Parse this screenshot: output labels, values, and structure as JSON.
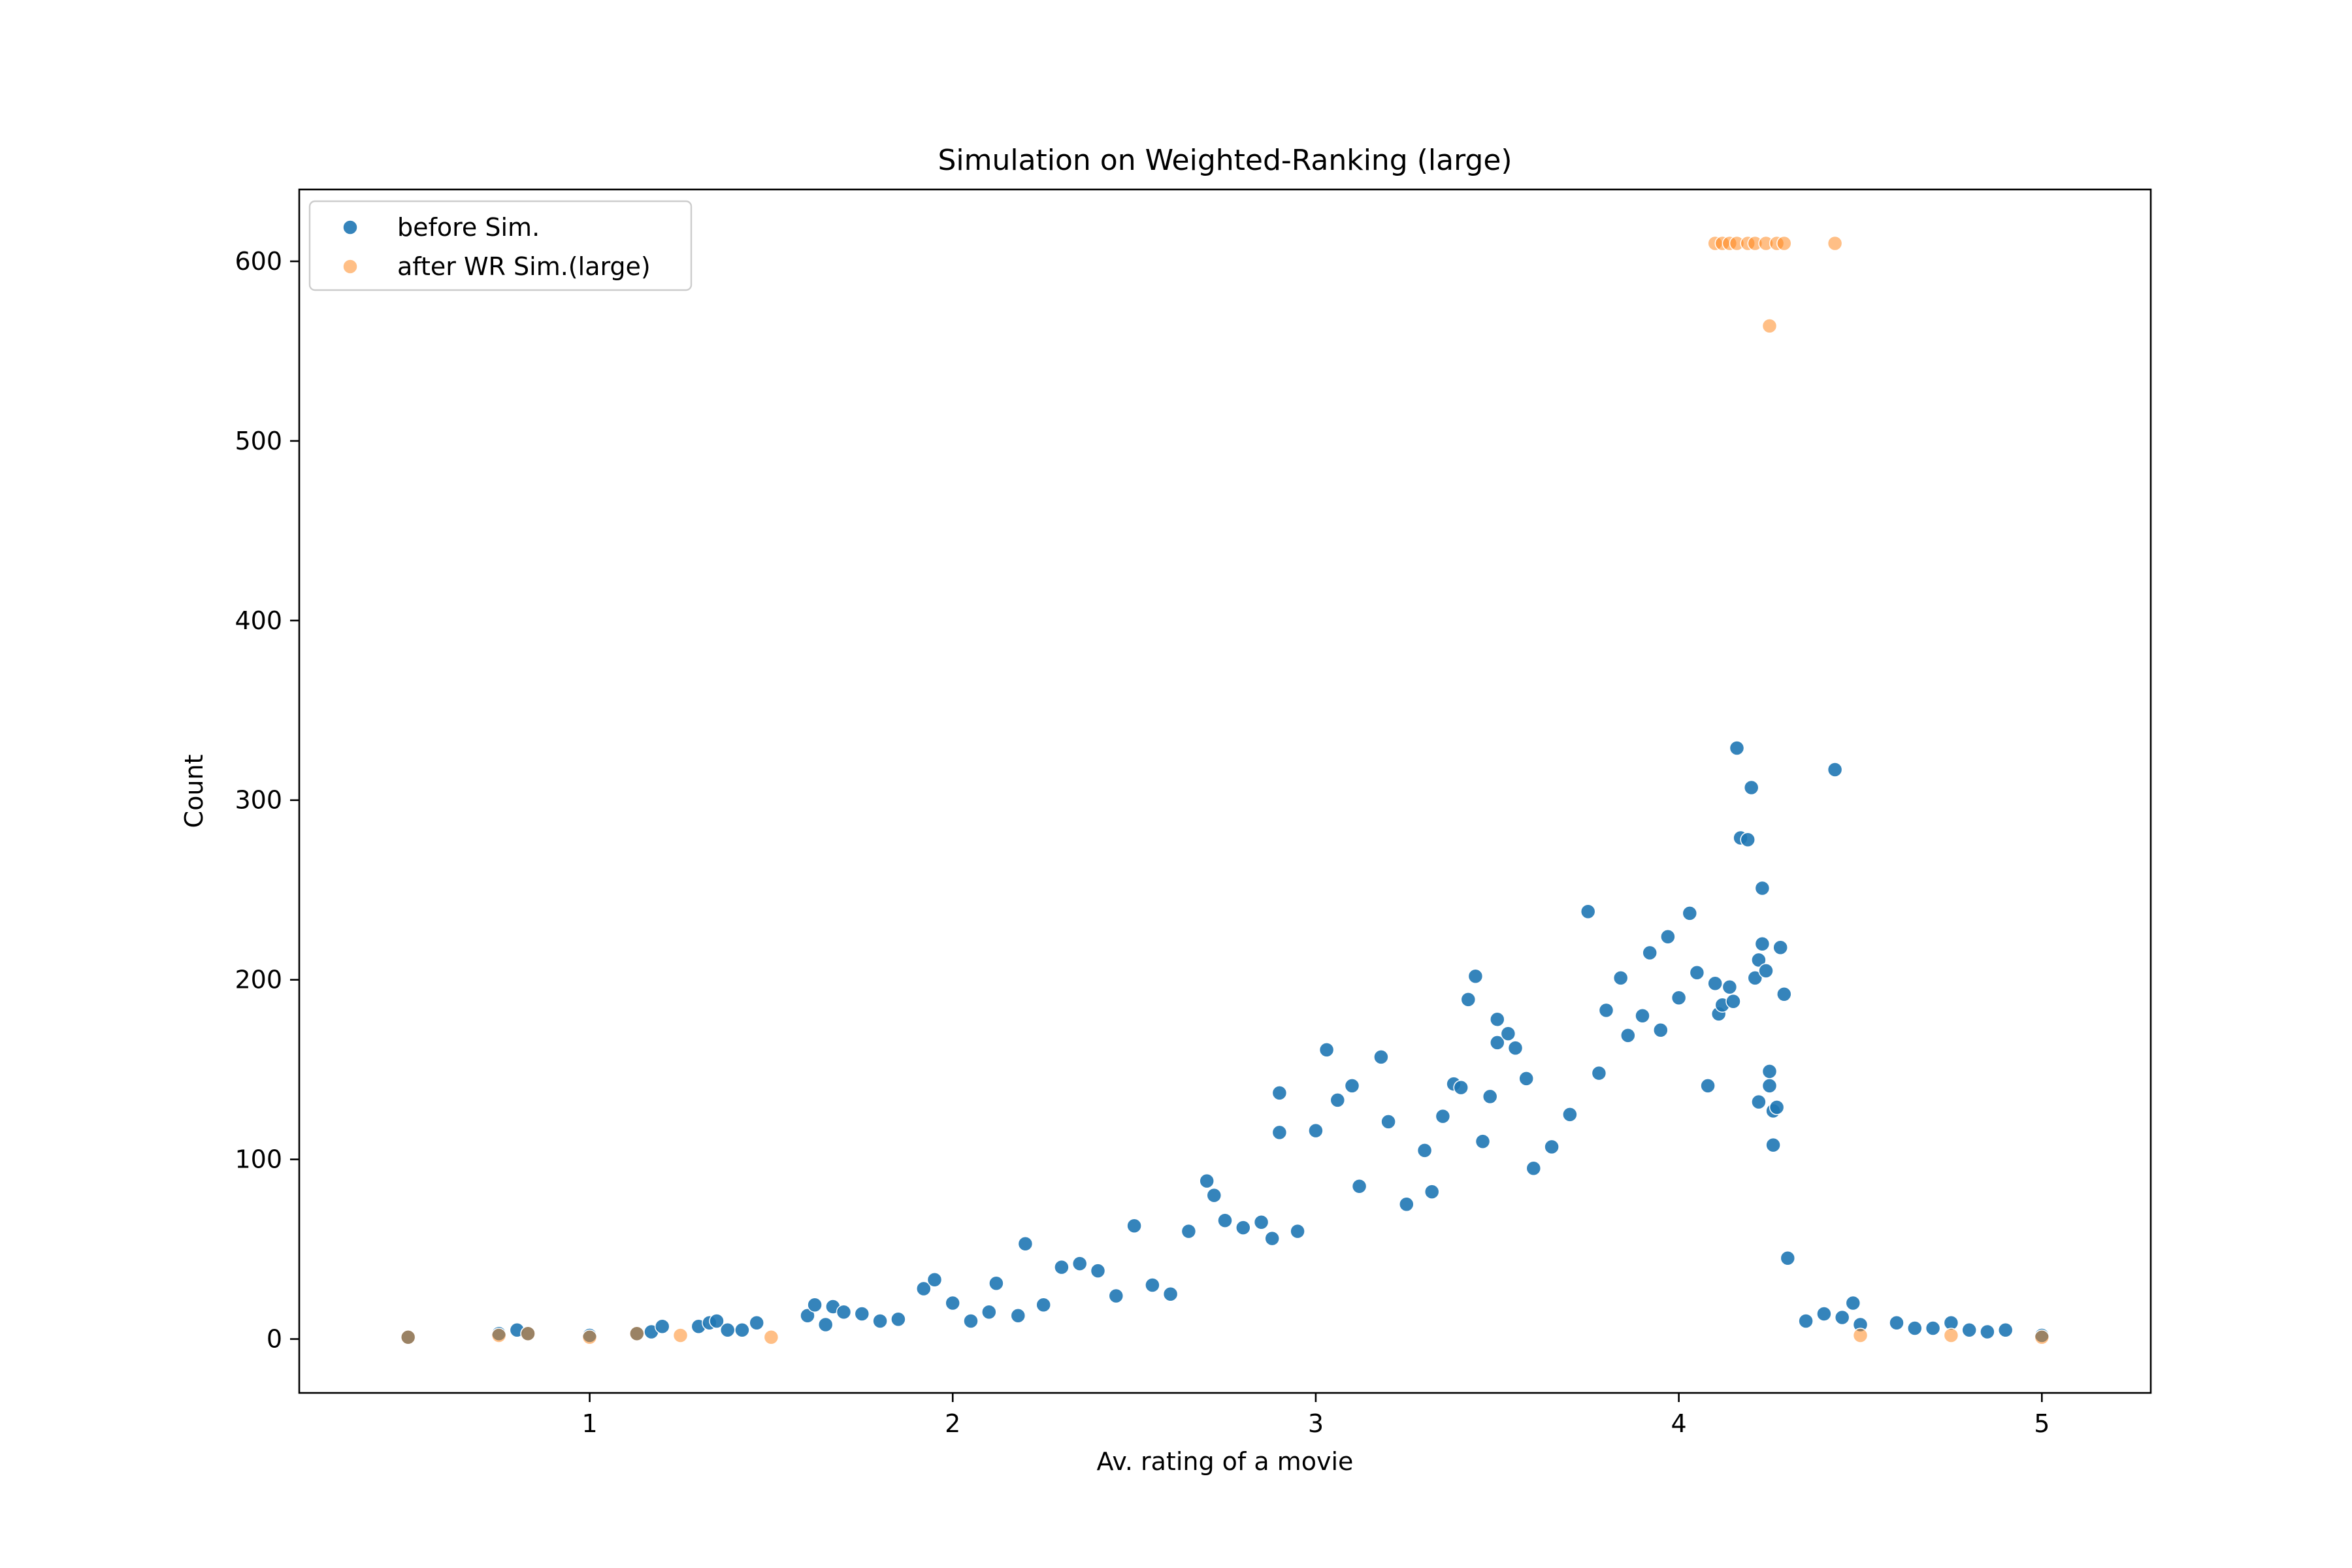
{
  "chart_data": {
    "type": "scatter",
    "title": "Simulation on Weighted-Ranking (large)",
    "xlabel": "Av. rating of a movie",
    "ylabel": "Count",
    "xlim": [
      0.2,
      5.3
    ],
    "ylim": [
      -30,
      640
    ],
    "xticks": [
      1,
      2,
      3,
      4,
      5
    ],
    "yticks": [
      0,
      100,
      200,
      300,
      400,
      500,
      600
    ],
    "grid": false,
    "legend_position": "top-left",
    "series": [
      {
        "name": "before Sim.",
        "color": "#1f77b4",
        "alpha": 0.9,
        "points": [
          [
            0.5,
            1
          ],
          [
            0.75,
            3
          ],
          [
            0.8,
            5
          ],
          [
            0.83,
            3
          ],
          [
            1.0,
            2
          ],
          [
            1.13,
            3
          ],
          [
            1.17,
            4
          ],
          [
            1.2,
            7
          ],
          [
            1.3,
            7
          ],
          [
            1.33,
            9
          ],
          [
            1.35,
            10
          ],
          [
            1.38,
            5
          ],
          [
            1.42,
            5
          ],
          [
            1.46,
            9
          ],
          [
            1.6,
            13
          ],
          [
            1.62,
            19
          ],
          [
            1.65,
            8
          ],
          [
            1.67,
            18
          ],
          [
            1.7,
            15
          ],
          [
            1.75,
            14
          ],
          [
            1.8,
            10
          ],
          [
            1.85,
            11
          ],
          [
            1.92,
            28
          ],
          [
            1.95,
            33
          ],
          [
            2.0,
            20
          ],
          [
            2.05,
            10
          ],
          [
            2.1,
            15
          ],
          [
            2.12,
            31
          ],
          [
            2.18,
            13
          ],
          [
            2.2,
            53
          ],
          [
            2.25,
            19
          ],
          [
            2.3,
            40
          ],
          [
            2.35,
            42
          ],
          [
            2.4,
            38
          ],
          [
            2.45,
            24
          ],
          [
            2.5,
            63
          ],
          [
            2.55,
            30
          ],
          [
            2.6,
            25
          ],
          [
            2.65,
            60
          ],
          [
            2.7,
            88
          ],
          [
            2.72,
            80
          ],
          [
            2.75,
            66
          ],
          [
            2.8,
            62
          ],
          [
            2.85,
            65
          ],
          [
            2.88,
            56
          ],
          [
            2.9,
            137
          ],
          [
            2.9,
            115
          ],
          [
            2.95,
            60
          ],
          [
            3.0,
            116
          ],
          [
            3.03,
            161
          ],
          [
            3.06,
            133
          ],
          [
            3.1,
            141
          ],
          [
            3.12,
            85
          ],
          [
            3.18,
            157
          ],
          [
            3.2,
            121
          ],
          [
            3.25,
            75
          ],
          [
            3.3,
            105
          ],
          [
            3.32,
            82
          ],
          [
            3.35,
            124
          ],
          [
            3.38,
            142
          ],
          [
            3.4,
            140
          ],
          [
            3.42,
            189
          ],
          [
            3.44,
            202
          ],
          [
            3.46,
            110
          ],
          [
            3.48,
            135
          ],
          [
            3.5,
            165
          ],
          [
            3.5,
            178
          ],
          [
            3.53,
            170
          ],
          [
            3.55,
            162
          ],
          [
            3.58,
            145
          ],
          [
            3.6,
            95
          ],
          [
            3.65,
            107
          ],
          [
            3.7,
            125
          ],
          [
            3.75,
            238
          ],
          [
            3.78,
            148
          ],
          [
            3.8,
            183
          ],
          [
            3.84,
            201
          ],
          [
            3.86,
            169
          ],
          [
            3.9,
            180
          ],
          [
            3.92,
            215
          ],
          [
            3.95,
            172
          ],
          [
            3.97,
            224
          ],
          [
            4.0,
            190
          ],
          [
            4.03,
            237
          ],
          [
            4.05,
            204
          ],
          [
            4.08,
            141
          ],
          [
            4.1,
            198
          ],
          [
            4.11,
            181
          ],
          [
            4.12,
            186
          ],
          [
            4.14,
            196
          ],
          [
            4.15,
            188
          ],
          [
            4.16,
            329
          ],
          [
            4.17,
            279
          ],
          [
            4.19,
            278
          ],
          [
            4.2,
            307
          ],
          [
            4.21,
            201
          ],
          [
            4.22,
            211
          ],
          [
            4.22,
            132
          ],
          [
            4.23,
            251
          ],
          [
            4.23,
            220
          ],
          [
            4.24,
            205
          ],
          [
            4.25,
            141
          ],
          [
            4.25,
            149
          ],
          [
            4.26,
            108
          ],
          [
            4.26,
            127
          ],
          [
            4.27,
            129
          ],
          [
            4.28,
            218
          ],
          [
            4.29,
            192
          ],
          [
            4.3,
            45
          ],
          [
            4.35,
            10
          ],
          [
            4.4,
            14
          ],
          [
            4.43,
            317
          ],
          [
            4.45,
            12
          ],
          [
            4.48,
            20
          ],
          [
            4.5,
            8
          ],
          [
            4.6,
            9
          ],
          [
            4.65,
            6
          ],
          [
            4.7,
            6
          ],
          [
            4.75,
            9
          ],
          [
            4.8,
            5
          ],
          [
            4.85,
            4
          ],
          [
            4.9,
            5
          ],
          [
            5.0,
            2
          ]
        ]
      },
      {
        "name": "after WR Sim.(large)",
        "color": "#ff7f0e",
        "alpha": 0.5,
        "points": [
          [
            0.5,
            1
          ],
          [
            0.75,
            2
          ],
          [
            0.83,
            3
          ],
          [
            1.0,
            1
          ],
          [
            1.13,
            3
          ],
          [
            1.25,
            2
          ],
          [
            1.5,
            1
          ],
          [
            4.1,
            610
          ],
          [
            4.12,
            610
          ],
          [
            4.14,
            610
          ],
          [
            4.16,
            610
          ],
          [
            4.19,
            610
          ],
          [
            4.21,
            610
          ],
          [
            4.24,
            610
          ],
          [
            4.27,
            610
          ],
          [
            4.29,
            610
          ],
          [
            4.43,
            610
          ],
          [
            4.25,
            564
          ],
          [
            4.5,
            2
          ],
          [
            4.75,
            2
          ],
          [
            5.0,
            1
          ]
        ]
      }
    ]
  }
}
